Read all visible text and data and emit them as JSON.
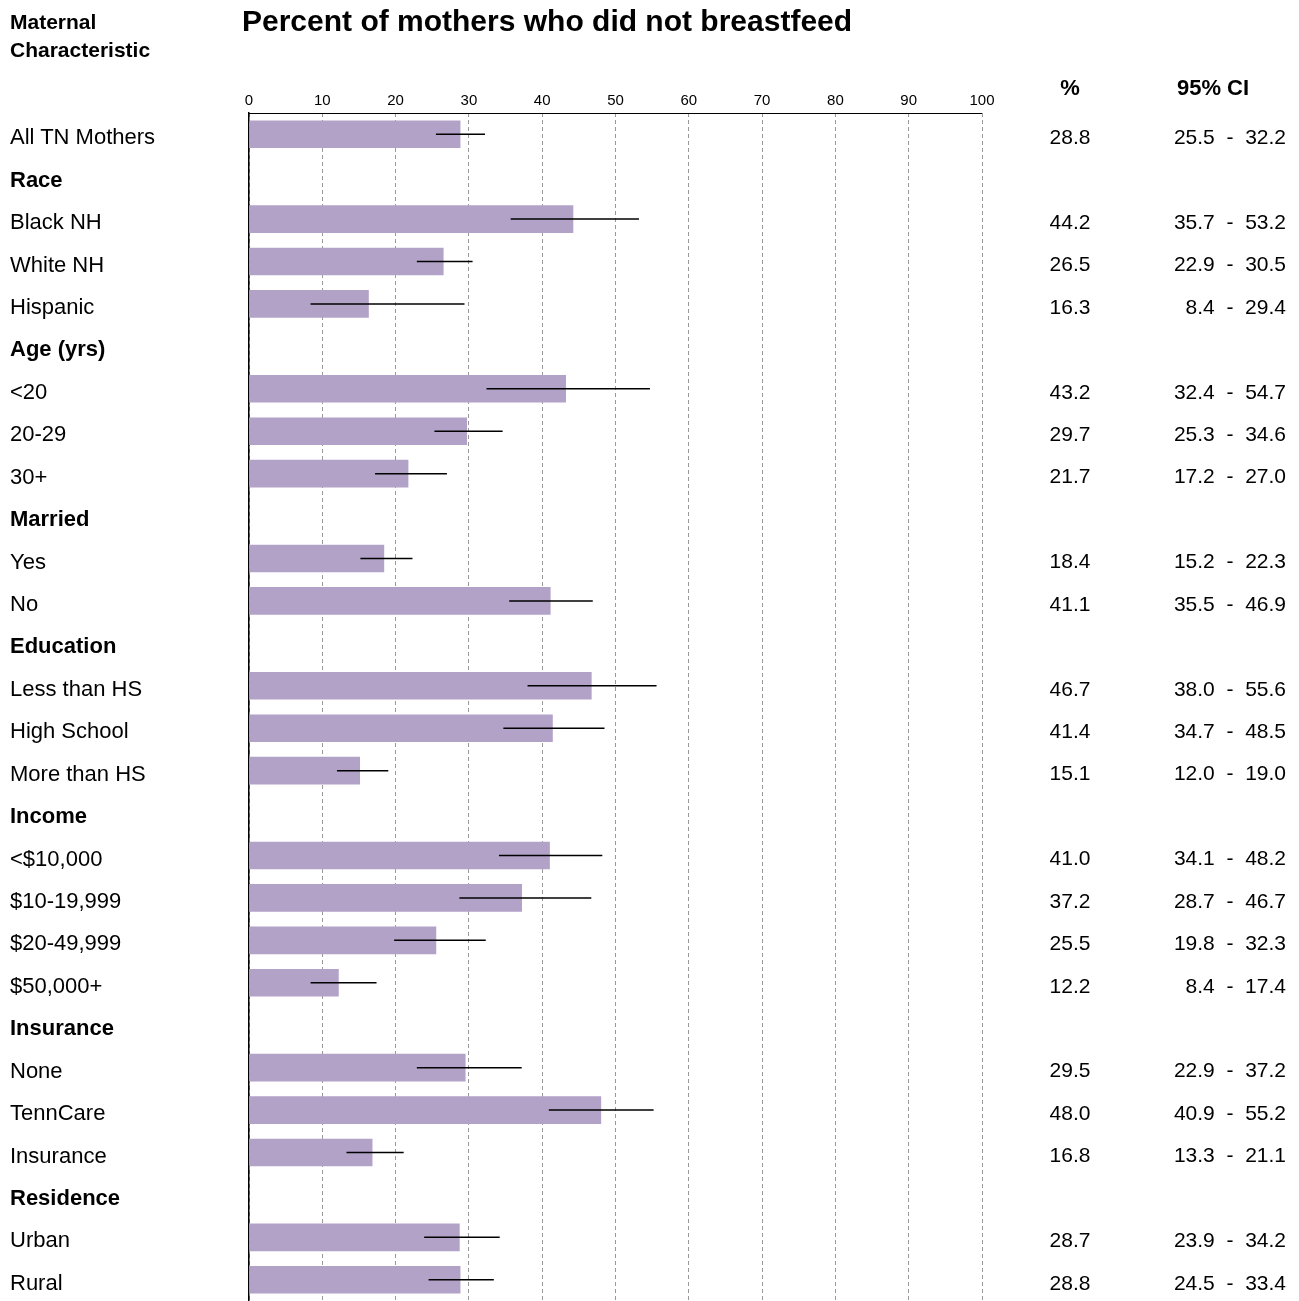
{
  "chart_data": {
    "type": "bar",
    "orientation": "horizontal",
    "title": "Percent of mothers who did not breastfeed",
    "ylabel": "Maternal Characteristic",
    "categories": [
      "All TN Mothers",
      "Race",
      "Black NH",
      "White NH",
      "Hispanic",
      "Age (yrs)",
      "<20",
      "20-29",
      "30+",
      "Married",
      "Yes",
      "No",
      "Education",
      "Less than HS",
      "High School",
      "More than HS",
      "Income",
      "<$10,000",
      "$10-19,999",
      "$20-49,999",
      "$50,000+",
      "Insurance",
      "None",
      "TennCare",
      "Insurance",
      "Residence",
      "Urban",
      "Rural"
    ],
    "values": [
      28.8,
      null,
      44.2,
      26.5,
      16.3,
      null,
      43.2,
      29.7,
      21.7,
      null,
      18.4,
      41.1,
      null,
      46.7,
      41.4,
      15.1,
      null,
      41.0,
      37.2,
      25.5,
      12.2,
      null,
      29.5,
      48.0,
      16.8,
      null,
      28.7,
      28.8
    ],
    "errors": [
      [
        25.5,
        32.2
      ],
      null,
      [
        35.7,
        53.2
      ],
      [
        22.9,
        30.5
      ],
      [
        8.4,
        29.4
      ],
      null,
      [
        32.4,
        54.7
      ],
      [
        25.3,
        34.6
      ],
      [
        17.2,
        27.0
      ],
      null,
      [
        15.2,
        22.3
      ],
      [
        35.5,
        46.9
      ],
      null,
      [
        38.0,
        55.6
      ],
      [
        34.7,
        48.5
      ],
      [
        12.0,
        19.0
      ],
      null,
      [
        34.1,
        48.2
      ],
      [
        28.7,
        46.7
      ],
      [
        19.8,
        32.3
      ],
      [
        8.4,
        17.4
      ],
      null,
      [
        22.9,
        37.2
      ],
      [
        40.9,
        55.2
      ],
      [
        13.3,
        21.1
      ],
      null,
      [
        23.9,
        34.2
      ],
      [
        24.5,
        33.4
      ]
    ],
    "color": "#b3a2c7",
    "xlim": [
      0,
      100
    ],
    "xticks": [
      0,
      10,
      20,
      30,
      40,
      50,
      60,
      70,
      80,
      90,
      100
    ],
    "grid": "x",
    "annotations": [
      "%",
      "95% CI",
      "28.8",
      "25.5  -  32.2",
      "44.2",
      "35.7  -  53.2",
      "26.5",
      "22.9  -  30.5",
      "16.3",
      "8.4  -  29.4",
      "43.2",
      "32.4  -  54.7",
      "29.7",
      "25.3  -  34.6",
      "21.7",
      "17.2  -  27.0",
      "18.4",
      "15.2  -  22.3",
      "41.1",
      "35.5  -  46.9",
      "46.7",
      "38.0  -  55.6",
      "41.4",
      "34.7  -  48.5",
      "15.1",
      "12.0  -  19.0",
      "41.0",
      "34.1  -  48.2",
      "37.2",
      "28.7  -  46.7",
      "25.5",
      "19.8  -  32.3",
      "12.2",
      "8.4  -  17.4",
      "29.5",
      "22.9  -  37.2",
      "48.0",
      "40.9  -  55.2",
      "16.8",
      "13.3  -  21.1",
      "28.7",
      "23.9  -  34.2",
      "28.8",
      "24.5  -  33.4"
    ]
  }
}
